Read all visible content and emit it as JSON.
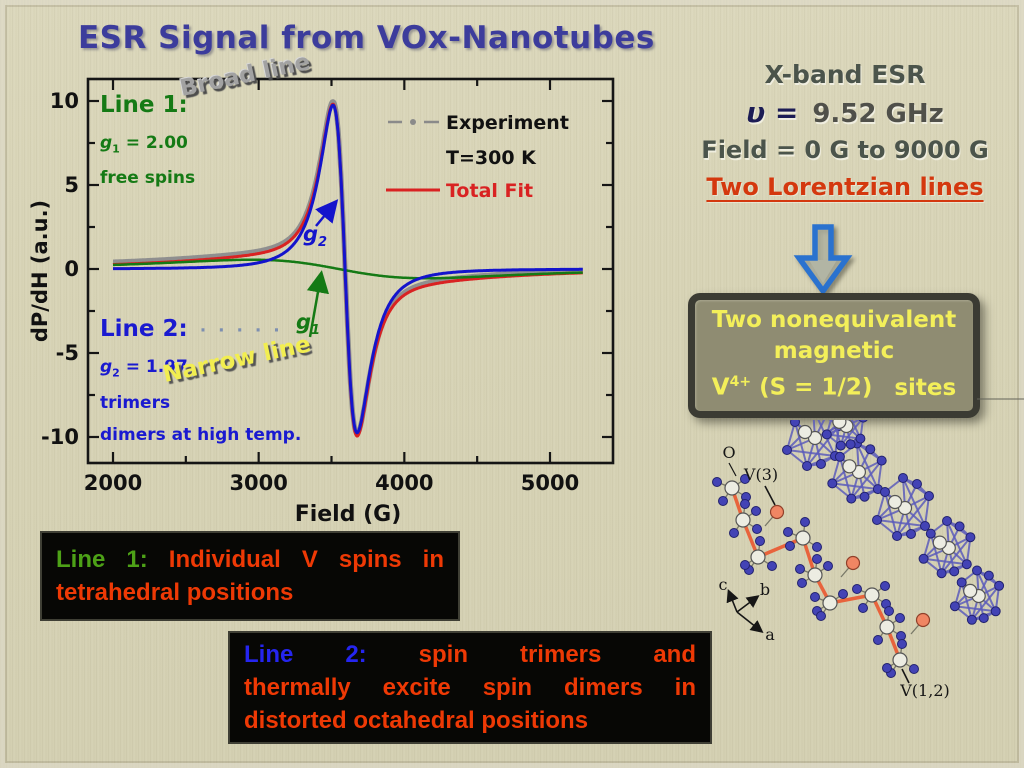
{
  "slide": {
    "title": "ESR Signal from VOx-Nanotubes"
  },
  "chart_data": {
    "type": "line",
    "title": "",
    "xlabel": "Field (G)",
    "ylabel": "dP/dH (a.u.)",
    "xlim": [
      1830,
      5430
    ],
    "ylim": [
      -11.5,
      11.3
    ],
    "x_major_ticks": [
      2000,
      3000,
      4000,
      5000
    ],
    "x_minor_ticks": [
      2500,
      3500,
      4500
    ],
    "y_major_ticks": [
      10,
      5,
      0,
      -5,
      -10
    ],
    "y_minor_ticks": [
      7.5,
      2.5,
      -2.5,
      -7.5
    ],
    "grid": false,
    "legend_position": "upper right inside",
    "sample_range_G": [
      2000,
      5225
    ],
    "series": [
      {
        "name": "Experiment",
        "color": "#8f8f8f",
        "style": "thick gray trace (dash-dot legend symbol)",
        "model": "sum_of_lines_plus_offset",
        "offset": 0.15,
        "width": 5
      },
      {
        "name": "Total Fit",
        "color": "#d92222",
        "style": "solid",
        "model": "sum_of_lines",
        "width": 3
      },
      {
        "name": "Line 1 (broad, g1 = 2.00)",
        "color": "#157a15",
        "style": "solid",
        "model": "lorentzian_derivative",
        "center_G": 3550,
        "pp_width_G": 1200,
        "peak_amplitude": 0.55,
        "width": 2.5
      },
      {
        "name": "Line 2 (narrow, g2 = 1.97)",
        "color": "#1414cc",
        "style": "solid",
        "model": "lorentzian_derivative",
        "center_G": 3593,
        "pp_width_G": 165,
        "peak_amplitude": 9.75,
        "width": 3
      }
    ]
  },
  "legend": {
    "experiment": "Experiment",
    "temperature": "T=300 K",
    "total_fit": "Total Fit"
  },
  "annotations": {
    "line1_title": "Line 1:",
    "line1_g": "g",
    "line1_g_sub": "1",
    "line1_g_eq": " = 2.00",
    "line1_desc": "free spins",
    "broad": "Broad line",
    "line2_title": "Line 2:",
    "line2_dots": "· · · · ·",
    "line2_g": "g",
    "line2_g_sub": "2",
    "line2_g_eq": " = 1.97",
    "line2_desc1": "trimers",
    "line2_desc2": "dimers at high temp.",
    "narrow": "Narrow line",
    "g2_label": "g",
    "g2_sub": "2",
    "g1_label": "g",
    "g1_sub": "1"
  },
  "right_panel": {
    "xband": "X-band ESR",
    "nu": "υ =",
    "freq": "9.52 GHz",
    "field_range": "Field = 0 G to 9000 G",
    "lorentzian": "Two Lorentzian lines",
    "box_line1": "Two nonequivalent",
    "box_line2": "magnetic",
    "box_v": "V",
    "box_v_sup": "4+",
    "box_rest": " (S = 1/2)",
    "box_sites": "sites"
  },
  "crystal": {
    "o": "O",
    "v3": "V(3)",
    "axis_c": "c",
    "axis_b": "b",
    "axis_a": "a",
    "v12": "V(1,2)"
  },
  "bottom": {
    "box1": {
      "lines": [
        {
          "title": "Line 1:",
          "text": "Individual V spins in"
        },
        {
          "text": "tetrahedral positions"
        }
      ]
    },
    "box2": {
      "lines": [
        {
          "title": "Line 2:",
          "text": "spin trimers and"
        },
        {
          "text": "thermally excite spin dimers in"
        },
        {
          "text": "distorted octahedral positions"
        }
      ]
    }
  },
  "colors": {
    "slide_bg": "#d8d4b6",
    "title": "#3c3c9c",
    "line1_green": "#157a15",
    "line2_blue": "#1414cc",
    "total_fit_red": "#d92222",
    "experiment_gray": "#8f8f8f",
    "lorentzian_red": "#d4380e",
    "box_yellow": "#f3ef5a",
    "box_fill": "#8f8c72",
    "bottom_red": "#ee3905",
    "bottom_green": "#4da117",
    "bottom_blue": "#2525f0",
    "arrow_blue": "#2a72cf"
  }
}
